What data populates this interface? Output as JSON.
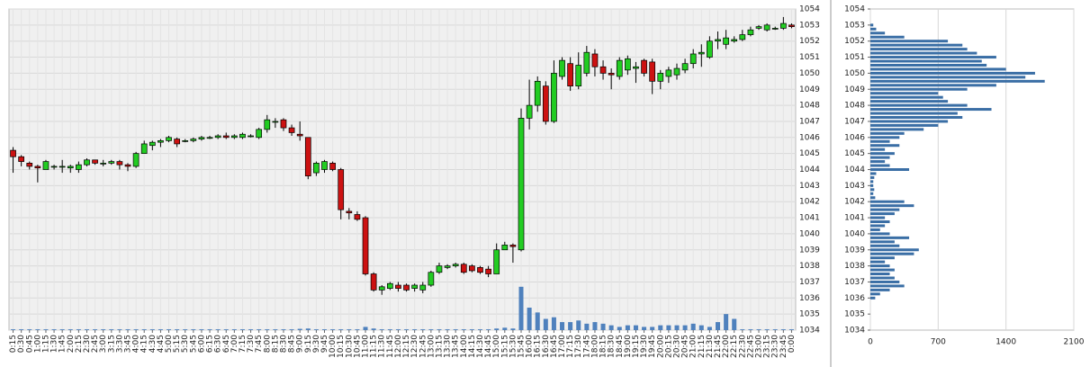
{
  "chart_data": [
    {
      "type": "candlestick",
      "categories": [
        "0:15",
        "0:30",
        "0:45",
        "1:00",
        "1:15",
        "1:30",
        "1:45",
        "2:00",
        "2:15",
        "2:30",
        "2:45",
        "3:00",
        "3:15",
        "3:30",
        "3:45",
        "4:00",
        "4:15",
        "4:30",
        "4:45",
        "5:00",
        "5:15",
        "5:30",
        "5:45",
        "6:00",
        "6:15",
        "6:30",
        "6:45",
        "7:00",
        "7:15",
        "7:30",
        "7:45",
        "8:00",
        "8:15",
        "8:30",
        "8:45",
        "9:00",
        "9:15",
        "9:30",
        "9:45",
        "10:00",
        "10:15",
        "10:30",
        "10:45",
        "11:00",
        "11:15",
        "11:30",
        "11:45",
        "12:00",
        "12:15",
        "12:30",
        "12:45",
        "13:00",
        "13:15",
        "13:30",
        "13:45",
        "14:00",
        "14:15",
        "14:30",
        "14:45",
        "15:00",
        "15:15",
        "15:30",
        "15:45",
        "16:00",
        "16:15",
        "16:30",
        "16:45",
        "17:00",
        "17:15",
        "17:30",
        "17:45",
        "18:00",
        "18:15",
        "18:30",
        "18:45",
        "19:00",
        "19:15",
        "19:30",
        "19:45",
        "20:00",
        "20:15",
        "20:30",
        "20:45",
        "21:00",
        "21:15",
        "21:30",
        "21:45",
        "22:00",
        "22:15",
        "22:30",
        "22:45",
        "23:00",
        "23:15",
        "23:30",
        "23:45",
        "0:00"
      ],
      "open": [
        1045.2,
        1044.8,
        1044.4,
        1044.2,
        1044.0,
        1044.2,
        1044.2,
        1044.1,
        1044.0,
        1044.3,
        1044.6,
        1044.4,
        1044.4,
        1044.5,
        1044.3,
        1044.2,
        1045.0,
        1045.5,
        1045.7,
        1045.8,
        1045.9,
        1045.8,
        1045.8,
        1045.9,
        1046.0,
        1046.0,
        1046.1,
        1046.0,
        1046.0,
        1046.1,
        1046.0,
        1046.5,
        1047.0,
        1047.1,
        1046.6,
        1046.2,
        1046.0,
        1043.8,
        1044.0,
        1044.4,
        1044.0,
        1041.4,
        1041.2,
        1041.0,
        1037.5,
        1036.5,
        1036.6,
        1036.8,
        1036.8,
        1036.6,
        1036.5,
        1036.8,
        1037.6,
        1037.9,
        1038.0,
        1038.1,
        1038.0,
        1037.9,
        1037.8,
        1037.5,
        1039.0,
        1039.3,
        1039.0,
        1047.2,
        1048.0,
        1049.2,
        1047.0,
        1049.8,
        1050.6,
        1049.2,
        1050.0,
        1051.2,
        1050.4,
        1050.0,
        1049.8,
        1050.2,
        1050.3,
        1050.8,
        1050.7,
        1049.5,
        1049.8,
        1049.9,
        1050.2,
        1050.6,
        1051.2,
        1051.0,
        1052.0,
        1051.8,
        1052.0,
        1052.1,
        1052.4,
        1052.8,
        1052.7,
        1052.8,
        1052.8,
        1053.0
      ],
      "high": [
        1045.4,
        1044.9,
        1044.5,
        1044.3,
        1044.6,
        1044.3,
        1044.6,
        1044.3,
        1044.5,
        1044.7,
        1044.6,
        1044.6,
        1044.6,
        1044.6,
        1044.4,
        1045.1,
        1045.8,
        1045.8,
        1045.9,
        1046.1,
        1046.0,
        1045.9,
        1046.0,
        1046.1,
        1046.1,
        1046.2,
        1046.3,
        1046.2,
        1046.3,
        1046.2,
        1046.6,
        1047.4,
        1047.2,
        1047.2,
        1046.8,
        1047.0,
        1046.0,
        1044.5,
        1044.6,
        1044.5,
        1044.1,
        1041.6,
        1041.4,
        1041.1,
        1037.6,
        1036.8,
        1037.0,
        1037.0,
        1036.9,
        1036.9,
        1037.0,
        1037.7,
        1038.2,
        1038.1,
        1038.2,
        1038.2,
        1038.1,
        1038.0,
        1038.0,
        1039.4,
        1039.5,
        1039.4,
        1047.8,
        1049.6,
        1049.8,
        1049.5,
        1050.8,
        1051.0,
        1051.0,
        1051.3,
        1051.7,
        1051.5,
        1050.8,
        1050.3,
        1051.0,
        1051.1,
        1050.7,
        1050.9,
        1050.9,
        1050.2,
        1050.4,
        1050.6,
        1050.9,
        1051.5,
        1051.8,
        1052.3,
        1052.6,
        1052.7,
        1052.3,
        1052.7,
        1052.9,
        1053.0,
        1053.1,
        1052.9,
        1053.5,
        1053.1
      ],
      "low": [
        1043.8,
        1044.2,
        1044.0,
        1043.2,
        1044.0,
        1044.0,
        1043.8,
        1043.8,
        1043.8,
        1044.2,
        1044.3,
        1044.2,
        1044.3,
        1044.0,
        1043.9,
        1044.1,
        1045.0,
        1045.2,
        1045.4,
        1045.7,
        1045.4,
        1045.7,
        1045.7,
        1045.8,
        1045.9,
        1045.9,
        1045.9,
        1045.9,
        1045.9,
        1046.0,
        1045.9,
        1046.3,
        1046.6,
        1046.4,
        1046.1,
        1045.8,
        1043.4,
        1043.6,
        1043.8,
        1043.9,
        1040.9,
        1040.9,
        1040.8,
        1037.4,
        1036.4,
        1036.2,
        1036.5,
        1036.4,
        1036.4,
        1036.4,
        1036.3,
        1036.7,
        1037.5,
        1037.8,
        1037.9,
        1037.5,
        1037.6,
        1037.5,
        1037.3,
        1037.5,
        1039.0,
        1038.2,
        1038.9,
        1046.5,
        1047.6,
        1046.8,
        1046.9,
        1049.6,
        1048.9,
        1049.0,
        1049.8,
        1049.8,
        1049.6,
        1049.0,
        1049.6,
        1049.9,
        1049.4,
        1049.8,
        1048.7,
        1049.0,
        1049.4,
        1049.6,
        1050.0,
        1050.3,
        1050.4,
        1050.9,
        1051.5,
        1051.5,
        1051.9,
        1052.0,
        1052.3,
        1052.7,
        1052.6,
        1052.7,
        1052.7,
        1052.8
      ],
      "close": [
        1044.8,
        1044.5,
        1044.2,
        1044.1,
        1044.5,
        1044.2,
        1044.2,
        1044.2,
        1044.3,
        1044.6,
        1044.4,
        1044.4,
        1044.5,
        1044.3,
        1044.2,
        1045.0,
        1045.6,
        1045.7,
        1045.8,
        1046.0,
        1045.6,
        1045.8,
        1045.9,
        1046.0,
        1046.0,
        1046.1,
        1046.0,
        1046.1,
        1046.2,
        1046.1,
        1046.5,
        1047.1,
        1047.0,
        1046.6,
        1046.3,
        1046.1,
        1043.6,
        1044.4,
        1044.5,
        1044.0,
        1041.5,
        1041.3,
        1040.9,
        1037.5,
        1036.5,
        1036.7,
        1036.9,
        1036.6,
        1036.5,
        1036.8,
        1036.8,
        1037.6,
        1038.0,
        1038.0,
        1038.1,
        1037.6,
        1037.7,
        1037.6,
        1037.5,
        1039.0,
        1039.3,
        1039.2,
        1047.2,
        1048.0,
        1049.5,
        1047.0,
        1050.0,
        1050.8,
        1049.2,
        1050.5,
        1051.3,
        1050.4,
        1050.0,
        1049.9,
        1050.8,
        1050.9,
        1050.4,
        1050.0,
        1049.5,
        1050.0,
        1050.2,
        1050.3,
        1050.6,
        1051.2,
        1051.3,
        1052.0,
        1052.1,
        1052.2,
        1052.1,
        1052.4,
        1052.7,
        1052.9,
        1053.0,
        1052.8,
        1053.1,
        1052.9
      ],
      "volume": [
        0.05,
        0.05,
        0.05,
        0.05,
        0.05,
        0.05,
        0.05,
        0.05,
        0.05,
        0.05,
        0.05,
        0.05,
        0.05,
        0.05,
        0.05,
        0.05,
        0.05,
        0.05,
        0.05,
        0.05,
        0.05,
        0.05,
        0.05,
        0.05,
        0.05,
        0.05,
        0.05,
        0.05,
        0.05,
        0.05,
        0.05,
        0.05,
        0.05,
        0.05,
        0.05,
        0.08,
        0.1,
        0.05,
        0.05,
        0.05,
        0.05,
        0.05,
        0.05,
        0.2,
        0.1,
        0.05,
        0.05,
        0.05,
        0.05,
        0.05,
        0.05,
        0.05,
        0.05,
        0.05,
        0.05,
        0.05,
        0.05,
        0.05,
        0.05,
        0.1,
        0.15,
        0.1,
        2.7,
        1.4,
        1.1,
        0.7,
        0.8,
        0.5,
        0.5,
        0.6,
        0.4,
        0.5,
        0.4,
        0.3,
        0.2,
        0.3,
        0.3,
        0.2,
        0.2,
        0.3,
        0.3,
        0.3,
        0.3,
        0.4,
        0.3,
        0.2,
        0.5,
        1.0,
        0.7,
        0.05,
        0.05,
        0.05,
        0.05,
        0.05,
        0.05,
        0.05
      ],
      "up_color": "#22cc22",
      "down_color": "#cc1111",
      "volume_color": "#4f81bd",
      "ylim": [
        1034,
        1054
      ],
      "yticks": [
        1034,
        1035,
        1036,
        1037,
        1038,
        1039,
        1040,
        1041,
        1042,
        1043,
        1044,
        1045,
        1046,
        1047,
        1048,
        1049,
        1050,
        1051,
        1052,
        1053,
        1054
      ],
      "grid": true
    },
    {
      "type": "barh",
      "y": [
        1036.0,
        1036.25,
        1036.5,
        1036.75,
        1037.0,
        1037.25,
        1037.5,
        1037.75,
        1038.0,
        1038.25,
        1038.5,
        1038.75,
        1039.0,
        1039.25,
        1039.5,
        1039.75,
        1040.0,
        1040.25,
        1040.5,
        1040.75,
        1041.0,
        1041.25,
        1041.5,
        1041.75,
        1042.0,
        1042.25,
        1042.5,
        1042.75,
        1043.0,
        1043.25,
        1043.5,
        1043.75,
        1044.0,
        1044.25,
        1044.5,
        1044.75,
        1045.0,
        1045.25,
        1045.5,
        1045.75,
        1046.0,
        1046.25,
        1046.5,
        1046.75,
        1047.0,
        1047.25,
        1047.5,
        1047.75,
        1048.0,
        1048.25,
        1048.5,
        1048.75,
        1049.0,
        1049.25,
        1049.5,
        1049.75,
        1050.0,
        1050.25,
        1050.5,
        1050.75,
        1051.0,
        1051.25,
        1051.5,
        1051.75,
        1052.0,
        1052.25,
        1052.5,
        1052.75,
        1053.0
      ],
      "values": [
        50,
        100,
        200,
        350,
        300,
        250,
        200,
        250,
        200,
        150,
        250,
        450,
        500,
        300,
        250,
        400,
        200,
        100,
        150,
        200,
        150,
        250,
        300,
        450,
        350,
        50,
        30,
        40,
        30,
        30,
        40,
        60,
        400,
        200,
        150,
        200,
        250,
        150,
        300,
        200,
        300,
        350,
        550,
        700,
        800,
        950,
        900,
        1250,
        1000,
        800,
        750,
        700,
        1000,
        1300,
        1800,
        1600,
        1700,
        1400,
        1200,
        1150,
        1300,
        1100,
        1000,
        950,
        800,
        350,
        150,
        60,
        30
      ],
      "color": "#3a6ea5",
      "xlim": [
        0,
        2100
      ],
      "xticks": [
        0,
        700,
        1400,
        2100
      ],
      "ylim": [
        1034,
        1054
      ],
      "yticks": [
        1034,
        1035,
        1036,
        1037,
        1038,
        1039,
        1040,
        1041,
        1042,
        1043,
        1044,
        1045,
        1046,
        1047,
        1048,
        1049,
        1050,
        1051,
        1052,
        1053,
        1054
      ],
      "grid": true
    }
  ]
}
